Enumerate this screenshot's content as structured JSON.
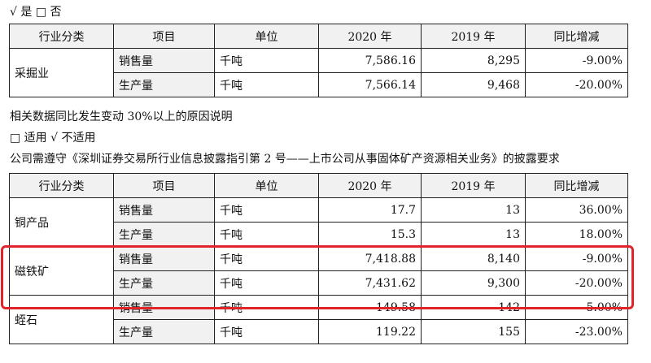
{
  "option_line_1": "√ 是 □ 否",
  "table1": {
    "headers": [
      "行业分类",
      "项目",
      "单位",
      "2020 年",
      "2019 年",
      "同比增减"
    ],
    "category": "采掘业",
    "rows": [
      {
        "item": "销售量",
        "unit": "千吨",
        "y2020": "7,586.16",
        "y2019": "8,295",
        "change": "-9.00%"
      },
      {
        "item": "生产量",
        "unit": "千吨",
        "y2020": "7,566.14",
        "y2019": "9,468",
        "change": "-20.00%"
      }
    ]
  },
  "reason_line": "相关数据同比发生变动 30%以上的原因说明",
  "option_line_2": "□ 适用 √ 不适用",
  "compliance_line": "公司需遵守《深圳证券交易所行业信息披露指引第 2 号——上市公司从事固体矿产资源相关业务》的披露要求",
  "table2": {
    "headers": [
      "行业分类",
      "项目",
      "单位",
      "2020 年",
      "2019 年",
      "同比增减"
    ],
    "groups": [
      {
        "category": "铜产品",
        "rows": [
          {
            "item": "销售量",
            "unit": "千吨",
            "y2020": "17.7",
            "y2019": "13",
            "change": "36.00%"
          },
          {
            "item": "生产量",
            "unit": "千吨",
            "y2020": "15.3",
            "y2019": "13",
            "change": "18.00%"
          }
        ]
      },
      {
        "category": "磁铁矿",
        "rows": [
          {
            "item": "销售量",
            "unit": "千吨",
            "y2020": "7,418.88",
            "y2019": "8,140",
            "change": "-9.00%"
          },
          {
            "item": "生产量",
            "unit": "千吨",
            "y2020": "7,431.62",
            "y2019": "9,300",
            "change": "-20.00%"
          }
        ]
      },
      {
        "category": "蛭石",
        "rows": [
          {
            "item": "销售量",
            "unit": "千吨",
            "y2020": "149.58",
            "y2019": "142",
            "change": "5.00%"
          },
          {
            "item": "生产量",
            "unit": "千吨",
            "y2020": "119.22",
            "y2019": "155",
            "change": "-23.00%"
          }
        ]
      }
    ]
  },
  "colors": {
    "highlight_border": "#e0242a",
    "header_fill": "#f1f1f1"
  }
}
